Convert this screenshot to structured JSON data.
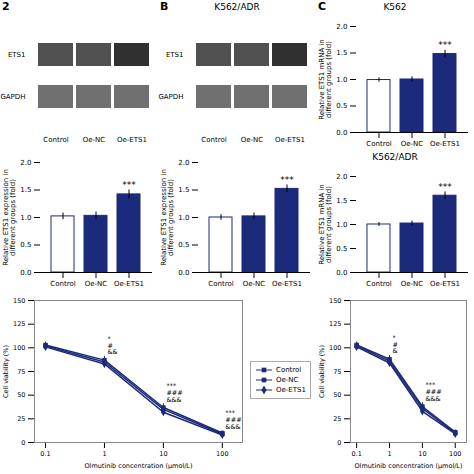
{
  "chart_data": [
    {
      "type": "blot",
      "categories": [
        "Control",
        "Oe-NC",
        "Oe-ETS1"
      ],
      "series": [
        {
          "name": "ETS1",
          "colors": [
            "#505050",
            "#505050",
            "#303030"
          ]
        },
        {
          "name": "GAPDH",
          "color": "#707070"
        }
      ],
      "annotations": [
        {
          "text": "2"
        }
      ]
    },
    {
      "type": "blot",
      "title": "K562/ADR",
      "categories": [
        "Control",
        "Oe-NC",
        "Oe-ETS1"
      ],
      "series": [
        {
          "name": "ETS1",
          "colors": [
            "#505050",
            "#505050",
            "#303030"
          ]
        },
        {
          "name": "GAPDH",
          "color": "#707070"
        }
      ],
      "annotations": [
        {
          "text": "B"
        }
      ]
    },
    {
      "type": "bar",
      "title": "K562",
      "ylabel": "Relative ETS1 mRNA in\ndifferent groups (fold)",
      "categories": [
        "Control",
        "Oe-NC",
        "Oe-ETS1"
      ],
      "values": [
        0.99,
        1.0,
        1.48
      ],
      "errors": [
        0.04,
        0.05,
        0.07
      ],
      "colors": [
        "white",
        "#1b2a7a",
        "#1b2a7a"
      ],
      "color": "#1b2a7a",
      "ylim": [
        0.0,
        2.0
      ],
      "yticks": [
        {
          "value": 0,
          "label": "0.0"
        },
        0.5,
        {
          "value": 1,
          "label": "1.0"
        },
        1.5,
        {
          "value": 2,
          "label": "2.0"
        }
      ],
      "annotations": [
        {
          "text": "C"
        },
        {
          "text": "***",
          "category": "Oe-ETS1"
        }
      ]
    },
    {
      "type": "bar",
      "ylabel": "Relative ETS1 expression in\ndifferent groups (fold)",
      "categories": [
        "Control",
        "Oe-NC",
        "Oe-ETS1"
      ],
      "values": [
        1.02,
        1.03,
        1.42
      ],
      "errors": [
        0.06,
        0.07,
        0.08
      ],
      "colors": [
        "white",
        "#1b2a7a",
        "#1b2a7a"
      ],
      "color": "#1b2a7a",
      "ylim": [
        0.0,
        2.0
      ],
      "yticks": [
        {
          "value": 0,
          "label": "0.0"
        },
        0.5,
        {
          "value": 1,
          "label": "1.0"
        },
        1.5,
        {
          "value": 2,
          "label": "2.0"
        }
      ],
      "annotations": [
        {
          "text": "***",
          "category": "Oe-ETS1"
        }
      ]
    },
    {
      "type": "bar",
      "ylabel": "Relative ETS1 expression in\ndifferent groups (fold)",
      "categories": [
        "Control",
        "Oe-NC",
        "Oe-ETS1"
      ],
      "values": [
        1.0,
        1.02,
        1.52
      ],
      "errors": [
        0.05,
        0.06,
        0.07
      ],
      "colors": [
        "white",
        "#1b2a7a",
        "#1b2a7a"
      ],
      "color": "#1b2a7a",
      "ylim": [
        0.0,
        2.0
      ],
      "yticks": [
        {
          "value": 0,
          "label": "0.0"
        },
        0.5,
        {
          "value": 1,
          "label": "1.0"
        },
        1.5,
        {
          "value": 2,
          "label": "2.0"
        }
      ],
      "annotations": [
        {
          "text": "***",
          "category": "Oe-ETS1"
        }
      ]
    },
    {
      "type": "bar",
      "title": "K562/ADR",
      "ylabel": "Relative ETS1 mRNA in\ndifferent groups (fold)",
      "categories": [
        "Control",
        "Oe-NC",
        "Oe-ETS1"
      ],
      "values": [
        1.0,
        1.02,
        1.6
      ],
      "errors": [
        0.04,
        0.05,
        0.08
      ],
      "colors": [
        "white",
        "#1b2a7a",
        "#1b2a7a"
      ],
      "color": "#1b2a7a",
      "ylim": [
        0.0,
        2.0
      ],
      "yticks": [
        {
          "value": 0,
          "label": "0.0"
        },
        0.5,
        {
          "value": 1,
          "label": "1.0"
        },
        1.5,
        {
          "value": 2,
          "label": "2.0"
        }
      ],
      "annotations": [
        {
          "text": "***",
          "category": "Oe-ETS1"
        }
      ]
    },
    {
      "type": "line",
      "xlabel": "Olmutinib concentration (μmol/L)",
      "ylabel": "Cell viability (%)",
      "x": [
        0.1,
        1,
        10,
        100
      ],
      "log": "x",
      "xlim": [
        0.065,
        220
      ],
      "xticks": [
        0.1,
        1,
        10,
        100
      ],
      "ylim": [
        0,
        150
      ],
      "yticks": [
        0,
        25,
        50,
        75,
        100,
        125,
        150
      ],
      "series": [
        {
          "name": "Control",
          "color": "#1b2a7a",
          "marker": "square",
          "values": [
            103,
            87,
            37,
            10
          ],
          "errors": [
            3,
            4,
            4,
            2
          ]
        },
        {
          "name": "Oe-NC",
          "color": "#1b2a7a",
          "marker": "square",
          "values": [
            102,
            85,
            35,
            9
          ],
          "errors": [
            3,
            4,
            4,
            2
          ]
        },
        {
          "name": "Oe-ETS1",
          "color": "#1b2a7a",
          "marker": "diamond",
          "values": [
            101,
            83,
            32,
            8
          ],
          "errors": [
            3,
            4,
            3,
            2
          ]
        }
      ],
      "legend": "right",
      "annotations": [
        {
          "x": 1,
          "text": "*\n#\n&&"
        },
        {
          "x": 10,
          "text": "***\n###\n&&&"
        },
        {
          "x": 100,
          "text": "***\n###\n&&&"
        }
      ]
    },
    {
      "type": "line",
      "xlabel": "Olmutinib concentration (μmol/L)",
      "ylabel": "Cell viability (%)",
      "x": [
        0.1,
        1,
        10,
        100
      ],
      "log": "x",
      "xlim": [
        0.065,
        220
      ],
      "xticks": [
        0.1,
        1,
        10,
        100
      ],
      "ylim": [
        0,
        150
      ],
      "yticks": [
        0,
        25,
        50,
        75,
        100,
        125,
        150
      ],
      "series": [
        {
          "name": "Control",
          "color": "#1b2a7a",
          "marker": "square",
          "values": [
            103,
            88,
            38,
            11
          ],
          "errors": [
            3,
            4,
            4,
            2
          ]
        },
        {
          "name": "Oe-NC",
          "color": "#1b2a7a",
          "marker": "square",
          "values": [
            102,
            86,
            36,
            10
          ],
          "errors": [
            3,
            4,
            4,
            2
          ]
        },
        {
          "name": "Oe-ETS1",
          "color": "#1b2a7a",
          "marker": "diamond",
          "values": [
            101,
            84,
            33,
            9
          ],
          "errors": [
            3,
            4,
            3,
            2
          ]
        }
      ],
      "annotations": [
        {
          "x": 1,
          "text": "*\n#\n&"
        },
        {
          "x": 10,
          "text": "***\n###\n&&&"
        }
      ]
    }
  ]
}
